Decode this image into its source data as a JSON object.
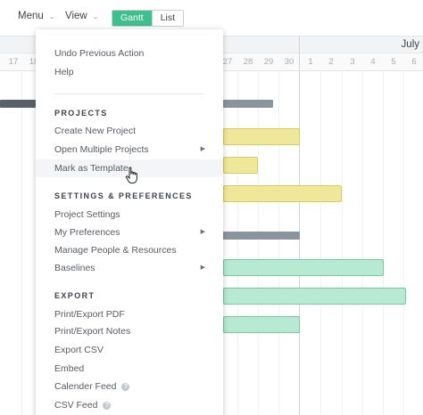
{
  "toolbar": {
    "menu_label": "Menu",
    "view_label": "View",
    "gantt_label": "Gantt",
    "list_label": "List"
  },
  "timeline": {
    "month": "July",
    "days": [
      "17",
      "18",
      "27",
      "28",
      "29",
      "30",
      "1",
      "2",
      "3",
      "4",
      "5",
      "6"
    ]
  },
  "menu": {
    "items_top": [
      "Undo Previous Action",
      "Help"
    ],
    "sections": [
      {
        "title": "PROJECTS",
        "items": [
          "Create New Project",
          "Open Multiple Projects",
          "Mark as Template"
        ]
      },
      {
        "title": "SETTINGS & PREFERENCES",
        "items": [
          "Project Settings",
          "My Preferences",
          "Manage People & Resources",
          "Baselines"
        ]
      },
      {
        "title": "EXPORT",
        "items": [
          "Print/Export PDF",
          "Print/Export Notes",
          "Export CSV",
          "Embed",
          "Calender Feed",
          "CSV Feed"
        ]
      }
    ],
    "help_glyph": "?"
  },
  "colors": {
    "accent": "#3fbf8f",
    "yellow_bar": "#efe79a",
    "green_bar": "#b8e9d2",
    "gray_bar": "#8a949c"
  },
  "icons": {
    "cursor": "hand-pointer-icon",
    "submenu": "submenu-arrow-icon",
    "help": "help-circle-icon"
  }
}
